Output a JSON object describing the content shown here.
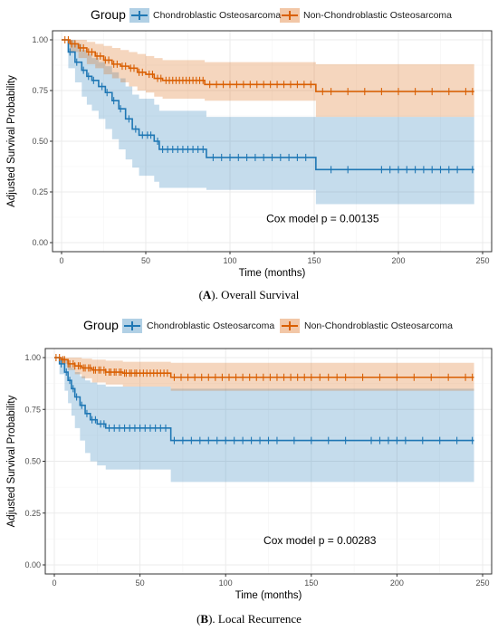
{
  "chart_data": [
    {
      "id": "A",
      "type": "line",
      "legend_title": "Group",
      "legend_position": "top",
      "xlabel": "Time (months)",
      "ylabel": "Adjusted Survival Probability",
      "xlim": [
        0,
        250
      ],
      "ylim": [
        0,
        1
      ],
      "x_ticks": [
        0,
        50,
        100,
        150,
        200,
        250
      ],
      "y_ticks": [
        "0.00",
        "0.25",
        "0.50",
        "0.75",
        "1.00"
      ],
      "grid": true,
      "annotation": "Cox model p = 0.00135",
      "caption_letter": "A",
      "caption_text": "). Overall Survival",
      "series": [
        {
          "name": "Chondroblastic Osteosarcoma",
          "color": "#1F77B4",
          "steps": [
            [
              0,
              1.0
            ],
            [
              4,
              0.94
            ],
            [
              8,
              0.89
            ],
            [
              12,
              0.85
            ],
            [
              15,
              0.82
            ],
            [
              18,
              0.8
            ],
            [
              22,
              0.77
            ],
            [
              26,
              0.74
            ],
            [
              30,
              0.7
            ],
            [
              34,
              0.66
            ],
            [
              38,
              0.61
            ],
            [
              42,
              0.56
            ],
            [
              46,
              0.53
            ],
            [
              55,
              0.5
            ],
            [
              58,
              0.46
            ],
            [
              86,
              0.42
            ],
            [
              151,
              0.36
            ],
            [
              245,
              0.36
            ]
          ],
          "upper": [
            [
              0,
              1.0
            ],
            [
              4,
              1.0
            ],
            [
              8,
              0.98
            ],
            [
              12,
              0.95
            ],
            [
              15,
              0.93
            ],
            [
              18,
              0.91
            ],
            [
              22,
              0.89
            ],
            [
              26,
              0.87
            ],
            [
              30,
              0.84
            ],
            [
              34,
              0.81
            ],
            [
              38,
              0.77
            ],
            [
              42,
              0.73
            ],
            [
              46,
              0.71
            ],
            [
              55,
              0.68
            ],
            [
              58,
              0.65
            ],
            [
              86,
              0.62
            ],
            [
              151,
              0.62
            ],
            [
              245,
              0.62
            ]
          ],
          "lower": [
            [
              0,
              1.0
            ],
            [
              4,
              0.86
            ],
            [
              8,
              0.79
            ],
            [
              12,
              0.72
            ],
            [
              15,
              0.68
            ],
            [
              18,
              0.65
            ],
            [
              22,
              0.61
            ],
            [
              26,
              0.56
            ],
            [
              30,
              0.51
            ],
            [
              34,
              0.46
            ],
            [
              38,
              0.41
            ],
            [
              42,
              0.37
            ],
            [
              46,
              0.33
            ],
            [
              55,
              0.3
            ],
            [
              58,
              0.27
            ],
            [
              86,
              0.26
            ],
            [
              151,
              0.19
            ],
            [
              245,
              0.19
            ]
          ],
          "censor": [
            5,
            9,
            13,
            16,
            19,
            24,
            27,
            31,
            35,
            40,
            44,
            48,
            51,
            53,
            57,
            60,
            63,
            66,
            69,
            72,
            75,
            78,
            81,
            84,
            90,
            95,
            100,
            105,
            110,
            115,
            120,
            125,
            130,
            135,
            140,
            145,
            160,
            170,
            190,
            195,
            200,
            205,
            210,
            215,
            220,
            225,
            230,
            235,
            244
          ]
        },
        {
          "name": "Non-Chondroblastic Osteosarcoma",
          "color": "#D95F02",
          "steps": [
            [
              0,
              1.0
            ],
            [
              5,
              0.98
            ],
            [
              10,
              0.96
            ],
            [
              15,
              0.94
            ],
            [
              20,
              0.92
            ],
            [
              25,
              0.9
            ],
            [
              30,
              0.88
            ],
            [
              35,
              0.87
            ],
            [
              40,
              0.86
            ],
            [
              45,
              0.84
            ],
            [
              50,
              0.83
            ],
            [
              55,
              0.81
            ],
            [
              60,
              0.8
            ],
            [
              85,
              0.78
            ],
            [
              151,
              0.745
            ],
            [
              245,
              0.745
            ]
          ],
          "upper": [
            [
              0,
              1.0
            ],
            [
              5,
              1.0
            ],
            [
              10,
              1.0
            ],
            [
              15,
              0.99
            ],
            [
              20,
              0.98
            ],
            [
              25,
              0.97
            ],
            [
              30,
              0.96
            ],
            [
              35,
              0.95
            ],
            [
              40,
              0.94
            ],
            [
              45,
              0.93
            ],
            [
              50,
              0.92
            ],
            [
              55,
              0.91
            ],
            [
              60,
              0.9
            ],
            [
              85,
              0.89
            ],
            [
              151,
              0.88
            ],
            [
              245,
              0.88
            ]
          ],
          "lower": [
            [
              0,
              1.0
            ],
            [
              5,
              0.94
            ],
            [
              10,
              0.91
            ],
            [
              15,
              0.88
            ],
            [
              20,
              0.86
            ],
            [
              25,
              0.83
            ],
            [
              30,
              0.81
            ],
            [
              35,
              0.79
            ],
            [
              40,
              0.77
            ],
            [
              45,
              0.75
            ],
            [
              50,
              0.74
            ],
            [
              55,
              0.72
            ],
            [
              60,
              0.71
            ],
            [
              85,
              0.7
            ],
            [
              151,
              0.62
            ],
            [
              245,
              0.62
            ]
          ],
          "censor": [
            2,
            4,
            6,
            8,
            11,
            13,
            16,
            18,
            21,
            23,
            26,
            28,
            31,
            33,
            36,
            38,
            41,
            43,
            46,
            48,
            52,
            54,
            57,
            59,
            62,
            64,
            66,
            68,
            70,
            72,
            74,
            76,
            78,
            80,
            82,
            84,
            88,
            92,
            96,
            100,
            104,
            108,
            112,
            116,
            120,
            124,
            128,
            132,
            136,
            140,
            144,
            148,
            155,
            160,
            170,
            180,
            190,
            200,
            210,
            220,
            230,
            240,
            244
          ]
        }
      ]
    },
    {
      "id": "B",
      "type": "line",
      "legend_title": "Group",
      "legend_position": "top",
      "xlabel": "Time (months)",
      "ylabel": "Adjusted Survival Probability",
      "xlim": [
        0,
        250
      ],
      "ylim": [
        0,
        1
      ],
      "x_ticks": [
        0,
        50,
        100,
        150,
        200,
        250
      ],
      "y_ticks": [
        "0.00",
        "0.25",
        "0.50",
        "0.75",
        "1.00"
      ],
      "grid": true,
      "annotation": "Cox model p = 0.00283",
      "caption_letter": "B",
      "caption_text": "). Local Recurrence",
      "series": [
        {
          "name": "Chondroblastic Osteosarcoma",
          "color": "#1F77B4",
          "steps": [
            [
              0,
              1.0
            ],
            [
              3,
              0.97
            ],
            [
              6,
              0.93
            ],
            [
              8,
              0.89
            ],
            [
              10,
              0.85
            ],
            [
              12,
              0.81
            ],
            [
              15,
              0.77
            ],
            [
              18,
              0.73
            ],
            [
              21,
              0.7
            ],
            [
              25,
              0.68
            ],
            [
              30,
              0.66
            ],
            [
              68,
              0.6
            ],
            [
              245,
              0.6
            ]
          ],
          "upper": [
            [
              0,
              1.0
            ],
            [
              3,
              1.0
            ],
            [
              6,
              0.99
            ],
            [
              8,
              0.97
            ],
            [
              10,
              0.95
            ],
            [
              12,
              0.93
            ],
            [
              15,
              0.91
            ],
            [
              18,
              0.89
            ],
            [
              21,
              0.88
            ],
            [
              25,
              0.87
            ],
            [
              30,
              0.86
            ],
            [
              68,
              0.85
            ],
            [
              245,
              0.85
            ]
          ],
          "lower": [
            [
              0,
              1.0
            ],
            [
              3,
              0.92
            ],
            [
              6,
              0.84
            ],
            [
              8,
              0.78
            ],
            [
              10,
              0.72
            ],
            [
              12,
              0.66
            ],
            [
              15,
              0.6
            ],
            [
              18,
              0.54
            ],
            [
              21,
              0.5
            ],
            [
              25,
              0.48
            ],
            [
              30,
              0.46
            ],
            [
              68,
              0.4
            ],
            [
              245,
              0.4
            ]
          ],
          "censor": [
            4,
            7,
            9,
            11,
            13,
            16,
            19,
            22,
            24,
            27,
            29,
            32,
            35,
            38,
            41,
            44,
            47,
            50,
            53,
            56,
            59,
            62,
            65,
            70,
            75,
            80,
            85,
            90,
            95,
            100,
            105,
            110,
            115,
            120,
            125,
            130,
            140,
            150,
            160,
            170,
            185,
            190,
            195,
            200,
            205,
            215,
            225,
            235,
            244
          ]
        },
        {
          "name": "Non-Chondroblastic Osteosarcoma",
          "color": "#D95F02",
          "steps": [
            [
              0,
              1.0
            ],
            [
              4,
              0.99
            ],
            [
              8,
              0.97
            ],
            [
              12,
              0.96
            ],
            [
              16,
              0.95
            ],
            [
              22,
              0.94
            ],
            [
              30,
              0.93
            ],
            [
              40,
              0.925
            ],
            [
              68,
              0.905
            ],
            [
              245,
              0.905
            ]
          ],
          "upper": [
            [
              0,
              1.0
            ],
            [
              4,
              1.0
            ],
            [
              8,
              1.0
            ],
            [
              12,
              1.0
            ],
            [
              16,
              0.995
            ],
            [
              22,
              0.99
            ],
            [
              30,
              0.985
            ],
            [
              40,
              0.98
            ],
            [
              68,
              0.975
            ],
            [
              245,
              0.975
            ]
          ],
          "lower": [
            [
              0,
              1.0
            ],
            [
              4,
              0.97
            ],
            [
              8,
              0.94
            ],
            [
              12,
              0.92
            ],
            [
              16,
              0.9
            ],
            [
              22,
              0.88
            ],
            [
              30,
              0.87
            ],
            [
              40,
              0.86
            ],
            [
              68,
              0.84
            ],
            [
              245,
              0.84
            ]
          ],
          "censor": [
            1,
            3,
            5,
            6,
            8,
            9,
            11,
            12,
            14,
            15,
            17,
            18,
            20,
            21,
            23,
            24,
            26,
            27,
            29,
            30,
            32,
            33,
            35,
            36,
            38,
            39,
            41,
            42,
            44,
            45,
            47,
            48,
            50,
            52,
            54,
            56,
            58,
            60,
            62,
            64,
            66,
            70,
            74,
            78,
            82,
            86,
            90,
            94,
            98,
            102,
            106,
            110,
            114,
            118,
            122,
            126,
            130,
            134,
            138,
            142,
            146,
            150,
            155,
            160,
            165,
            170,
            180,
            190,
            200,
            210,
            220,
            230,
            240,
            244
          ]
        }
      ]
    }
  ]
}
